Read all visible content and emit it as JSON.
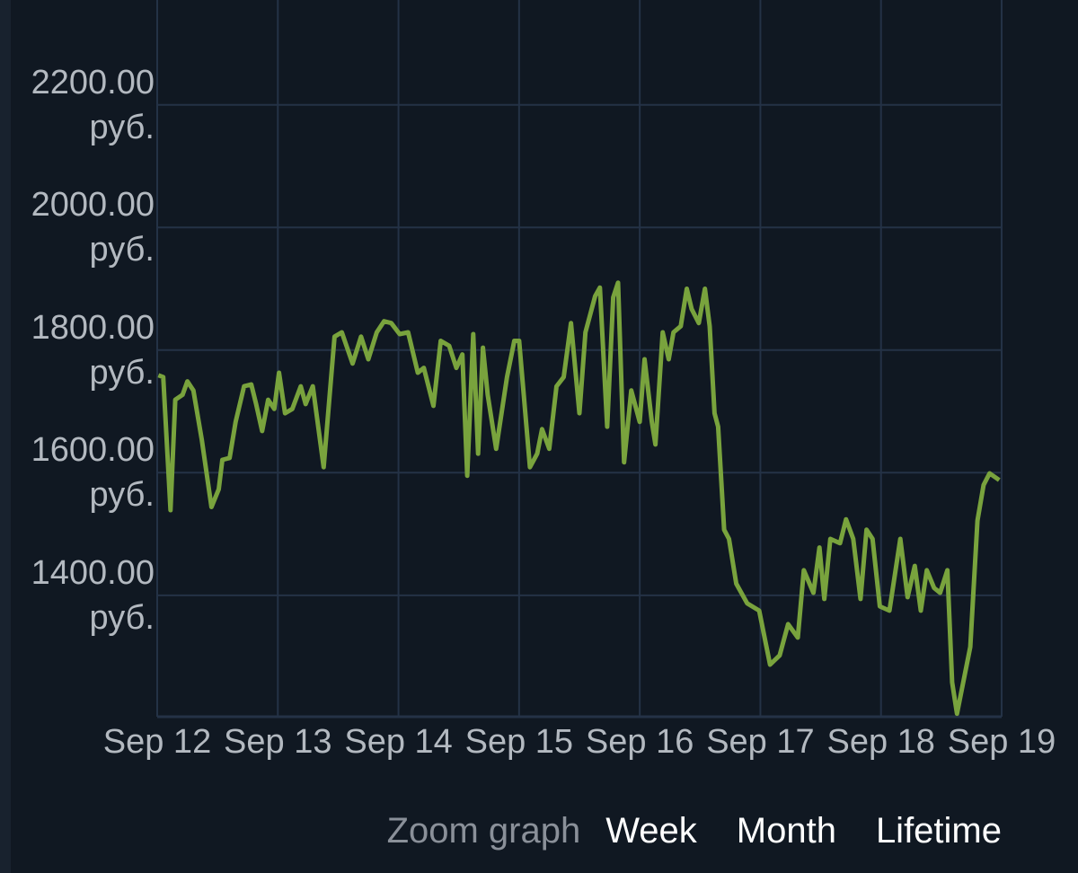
{
  "chart_data": {
    "type": "line",
    "x": [
      12.01,
      12.05,
      12.11,
      12.15,
      12.21,
      12.25,
      12.3,
      12.37,
      12.45,
      12.51,
      12.54,
      12.6,
      12.65,
      12.72,
      12.78,
      12.82,
      12.87,
      12.92,
      12.97,
      13.01,
      13.06,
      13.12,
      13.19,
      13.23,
      13.29,
      13.38,
      13.47,
      13.53,
      13.62,
      13.69,
      13.75,
      13.82,
      13.88,
      13.94,
      14.01,
      14.08,
      14.16,
      14.21,
      14.29,
      14.35,
      14.42,
      14.48,
      14.53,
      14.57,
      14.62,
      14.66,
      14.7,
      14.74,
      14.81,
      14.9,
      14.96,
      15.0,
      15.09,
      15.15,
      15.19,
      15.25,
      15.31,
      15.37,
      15.43,
      15.5,
      15.55,
      15.63,
      15.67,
      15.73,
      15.78,
      15.82,
      15.87,
      15.93,
      16.0,
      16.04,
      16.1,
      16.13,
      16.19,
      16.24,
      16.28,
      16.34,
      16.39,
      16.43,
      16.49,
      16.54,
      16.58,
      16.62,
      16.65,
      16.7,
      16.74,
      16.8,
      16.89,
      16.99,
      17.08,
      17.16,
      17.23,
      17.31,
      17.36,
      17.44,
      17.49,
      17.53,
      17.58,
      17.66,
      17.71,
      17.77,
      17.83,
      17.88,
      17.93,
      17.99,
      18.07,
      18.16,
      18.22,
      18.28,
      18.33,
      18.38,
      18.44,
      18.49,
      18.55,
      18.59,
      18.63,
      18.74,
      18.8,
      18.85,
      18.9,
      18.98
    ],
    "series": [
      {
        "color": "#79a33d",
        "values": [
          1759,
          1756,
          1539,
          1719,
          1727,
          1749,
          1734,
          1653,
          1544,
          1573,
          1621,
          1624,
          1683,
          1741,
          1744,
          1712,
          1668,
          1719,
          1704,
          1763,
          1697,
          1704,
          1741,
          1712,
          1741,
          1609,
          1822,
          1829,
          1778,
          1822,
          1785,
          1829,
          1847,
          1844,
          1826,
          1829,
          1763,
          1771,
          1709,
          1815,
          1807,
          1771,
          1793,
          1595,
          1826,
          1631,
          1804,
          1727,
          1639,
          1756,
          1815,
          1815,
          1609,
          1631,
          1671,
          1639,
          1741,
          1756,
          1844,
          1697,
          1829,
          1888,
          1902,
          1675,
          1886,
          1910,
          1617,
          1734,
          1683,
          1785,
          1683,
          1646,
          1829,
          1785,
          1829,
          1839,
          1900,
          1867,
          1844,
          1900,
          1839,
          1697,
          1675,
          1507,
          1492,
          1419,
          1387,
          1375,
          1287,
          1302,
          1353,
          1331,
          1441,
          1404,
          1478,
          1394,
          1492,
          1485,
          1524,
          1492,
          1394,
          1507,
          1492,
          1382,
          1375,
          1492,
          1397,
          1448,
          1375,
          1441,
          1412,
          1404,
          1441,
          1258,
          1207,
          1316,
          1522,
          1580,
          1599,
          1588
        ]
      }
    ],
    "xlim": [
      12,
      19
    ],
    "xticks": [
      {
        "value": 12,
        "label": "Sep 12"
      },
      {
        "value": 13,
        "label": "Sep 13"
      },
      {
        "value": 14,
        "label": "Sep 14"
      },
      {
        "value": 15,
        "label": "Sep 15"
      },
      {
        "value": 16,
        "label": "Sep 16"
      },
      {
        "value": 17,
        "label": "Sep 17"
      },
      {
        "value": 18,
        "label": "Sep 18"
      },
      {
        "value": 19,
        "label": "Sep 19"
      }
    ],
    "ylim": [
      1202,
      2371
    ],
    "yticks": [
      {
        "value": 1400,
        "label": "1400.00 руб."
      },
      {
        "value": 1600,
        "label": "1600.00 руб."
      },
      {
        "value": 1800,
        "label": "1800.00 руб."
      },
      {
        "value": 2000,
        "label": "2000.00 руб."
      },
      {
        "value": 2200,
        "label": "2200.00 руб."
      }
    ],
    "grid": true
  },
  "footer": {
    "label": "Zoom graph",
    "options": [
      "Week",
      "Month",
      "Lifetime"
    ]
  }
}
